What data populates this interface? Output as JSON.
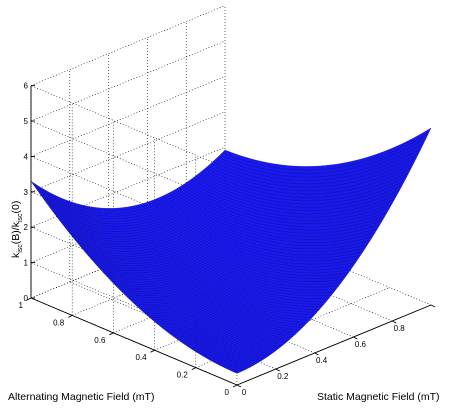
{
  "chart_data": {
    "type": "surface",
    "xlabel": "Static Magnetic Field (mT)",
    "ylabel": "Alternating Magnetic Field (mT)",
    "zlabel": {
      "main1": "k",
      "sub1": "isc",
      "mid": "(B)/k",
      "sub2": "isc",
      "end": "(0)"
    },
    "xlim": [
      0,
      1
    ],
    "ylim": [
      0,
      1
    ],
    "zlim": [
      0,
      6
    ],
    "xticks": [
      "0",
      "0.2",
      "0.4",
      "0.6",
      "0.8"
    ],
    "yticks": [
      "0",
      "0.2",
      "0.4",
      "0.6",
      "0.8",
      "1"
    ],
    "zticks": [
      "0",
      "1",
      "2",
      "3",
      "4",
      "5",
      "6"
    ],
    "grid": true,
    "surface_color": "#1a1aff",
    "edge_color": "#0a0a96",
    "x": [
      0,
      0.1,
      0.2,
      0.3,
      0.4,
      0.5,
      0.6,
      0.7,
      0.8,
      0.9,
      1.0
    ],
    "y": [
      0,
      0.1,
      0.2,
      0.3,
      0.4,
      0.5,
      0.6,
      0.7,
      0.8,
      0.9,
      1.0
    ],
    "z_corners": {
      "x0_y0": 0.33,
      "x1_y0": 5.0,
      "x0_y1": 3.3,
      "x1_y1": 2.25
    },
    "z_formula": "z = 0.33 + 4.67*x^2 + 2.97*y^2 - 6.05*x*y"
  }
}
